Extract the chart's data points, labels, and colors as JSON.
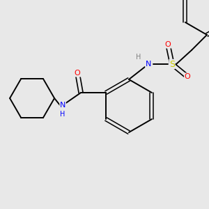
{
  "background_color": "#e8e8e8",
  "bond_color": "#000000",
  "atom_colors": {
    "N": "#0000ff",
    "O": "#ff0000",
    "S": "#cccc00",
    "C": "#000000",
    "H": "#808080"
  },
  "figsize": [
    3.0,
    3.0
  ],
  "dpi": 100
}
